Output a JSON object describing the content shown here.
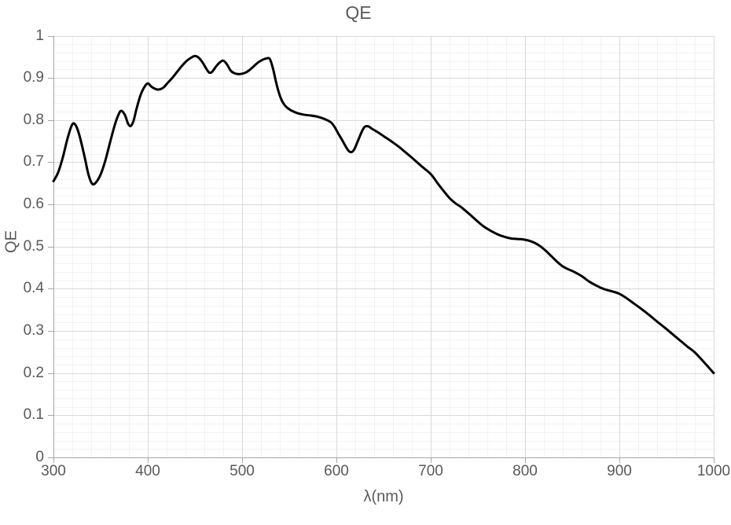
{
  "chart_data": {
    "type": "line",
    "title": "QE",
    "xlabel": "λ(nm)",
    "ylabel": "QE",
    "xlim": [
      300,
      1000
    ],
    "ylim": [
      0,
      1
    ],
    "x_major_step": 100,
    "x_minor_step": 20,
    "y_major_step": 0.1,
    "y_minor_step": 0.02,
    "grid": "major+minor",
    "legend": "none",
    "x_ticks": [
      {
        "label": "300",
        "value": 300
      },
      {
        "label": "400",
        "value": 400
      },
      {
        "label": "500",
        "value": 500
      },
      {
        "label": "600",
        "value": 600
      },
      {
        "label": "700",
        "value": 700
      },
      {
        "label": "800",
        "value": 800
      },
      {
        "label": "900",
        "value": 900
      },
      {
        "label": "1000",
        "value": 1000
      }
    ],
    "y_ticks": [
      {
        "label": "0",
        "value": 0
      },
      {
        "label": "0.1",
        "value": 0.1
      },
      {
        "label": "0.2",
        "value": 0.2
      },
      {
        "label": "0.3",
        "value": 0.3
      },
      {
        "label": "0.4",
        "value": 0.4
      },
      {
        "label": "0.5",
        "value": 0.5
      },
      {
        "label": "0.6",
        "value": 0.6
      },
      {
        "label": "0.7",
        "value": 0.7
      },
      {
        "label": "0.8",
        "value": 0.8
      },
      {
        "label": "0.9",
        "value": 0.9
      },
      {
        "label": "1",
        "value": 1
      }
    ],
    "colors": {
      "line": "#000000",
      "grid_major": "#d9d9d9",
      "grid_minor": "#f2f2f2",
      "axis": "#a6a6a6",
      "text": "#595959",
      "background": "#ffffff"
    },
    "series": [
      {
        "name": "QE",
        "points": [
          [
            300,
            0.655
          ],
          [
            305,
            0.676
          ],
          [
            310,
            0.712
          ],
          [
            315,
            0.757
          ],
          [
            320,
            0.79
          ],
          [
            324,
            0.786
          ],
          [
            328,
            0.76
          ],
          [
            333,
            0.713
          ],
          [
            337,
            0.672
          ],
          [
            341,
            0.649
          ],
          [
            345,
            0.652
          ],
          [
            350,
            0.671
          ],
          [
            355,
            0.704
          ],
          [
            360,
            0.747
          ],
          [
            365,
            0.788
          ],
          [
            369,
            0.813
          ],
          [
            372,
            0.822
          ],
          [
            376,
            0.811
          ],
          [
            379,
            0.792
          ],
          [
            382,
            0.786
          ],
          [
            385,
            0.799
          ],
          [
            388,
            0.826
          ],
          [
            392,
            0.857
          ],
          [
            396,
            0.877
          ],
          [
            400,
            0.887
          ],
          [
            404,
            0.879
          ],
          [
            409,
            0.873
          ],
          [
            413,
            0.873
          ],
          [
            417,
            0.878
          ],
          [
            421,
            0.888
          ],
          [
            426,
            0.9
          ],
          [
            431,
            0.914
          ],
          [
            436,
            0.928
          ],
          [
            441,
            0.94
          ],
          [
            446,
            0.948
          ],
          [
            450,
            0.952
          ],
          [
            454,
            0.948
          ],
          [
            458,
            0.937
          ],
          [
            462,
            0.922
          ],
          [
            465,
            0.913
          ],
          [
            468,
            0.914
          ],
          [
            472,
            0.926
          ],
          [
            476,
            0.936
          ],
          [
            480,
            0.941
          ],
          [
            484,
            0.932
          ],
          [
            488,
            0.917
          ],
          [
            492,
            0.911
          ],
          [
            496,
            0.909
          ],
          [
            500,
            0.91
          ],
          [
            504,
            0.913
          ],
          [
            508,
            0.919
          ],
          [
            512,
            0.927
          ],
          [
            516,
            0.935
          ],
          [
            520,
            0.941
          ],
          [
            524,
            0.945
          ],
          [
            528,
            0.947
          ],
          [
            530,
            0.942
          ],
          [
            533,
            0.92
          ],
          [
            536,
            0.89
          ],
          [
            539,
            0.865
          ],
          [
            542,
            0.847
          ],
          [
            545,
            0.836
          ],
          [
            548,
            0.829
          ],
          [
            552,
            0.823
          ],
          [
            558,
            0.817
          ],
          [
            565,
            0.813
          ],
          [
            572,
            0.811
          ],
          [
            580,
            0.808
          ],
          [
            588,
            0.802
          ],
          [
            594,
            0.795
          ],
          [
            598,
            0.784
          ],
          [
            602,
            0.768
          ],
          [
            606,
            0.753
          ],
          [
            610,
            0.737
          ],
          [
            613,
            0.727
          ],
          [
            616,
            0.724
          ],
          [
            619,
            0.731
          ],
          [
            623,
            0.752
          ],
          [
            627,
            0.773
          ],
          [
            630,
            0.784
          ],
          [
            634,
            0.785
          ],
          [
            638,
            0.779
          ],
          [
            644,
            0.771
          ],
          [
            650,
            0.762
          ],
          [
            658,
            0.75
          ],
          [
            666,
            0.737
          ],
          [
            674,
            0.722
          ],
          [
            682,
            0.707
          ],
          [
            690,
            0.691
          ],
          [
            700,
            0.672
          ],
          [
            708,
            0.648
          ],
          [
            714,
            0.631
          ],
          [
            720,
            0.615
          ],
          [
            726,
            0.603
          ],
          [
            732,
            0.594
          ],
          [
            740,
            0.579
          ],
          [
            748,
            0.563
          ],
          [
            756,
            0.548
          ],
          [
            764,
            0.537
          ],
          [
            772,
            0.528
          ],
          [
            780,
            0.522
          ],
          [
            786,
            0.519
          ],
          [
            792,
            0.518
          ],
          [
            798,
            0.517
          ],
          [
            804,
            0.514
          ],
          [
            810,
            0.509
          ],
          [
            816,
            0.501
          ],
          [
            822,
            0.49
          ],
          [
            828,
            0.477
          ],
          [
            834,
            0.464
          ],
          [
            840,
            0.453
          ],
          [
            846,
            0.446
          ],
          [
            852,
            0.44
          ],
          [
            860,
            0.43
          ],
          [
            868,
            0.417
          ],
          [
            876,
            0.407
          ],
          [
            884,
            0.399
          ],
          [
            892,
            0.394
          ],
          [
            900,
            0.388
          ],
          [
            908,
            0.377
          ],
          [
            916,
            0.364
          ],
          [
            924,
            0.351
          ],
          [
            932,
            0.337
          ],
          [
            940,
            0.322
          ],
          [
            948,
            0.308
          ],
          [
            956,
            0.293
          ],
          [
            964,
            0.278
          ],
          [
            972,
            0.263
          ],
          [
            980,
            0.249
          ],
          [
            990,
            0.225
          ],
          [
            1000,
            0.2
          ]
        ]
      }
    ]
  }
}
